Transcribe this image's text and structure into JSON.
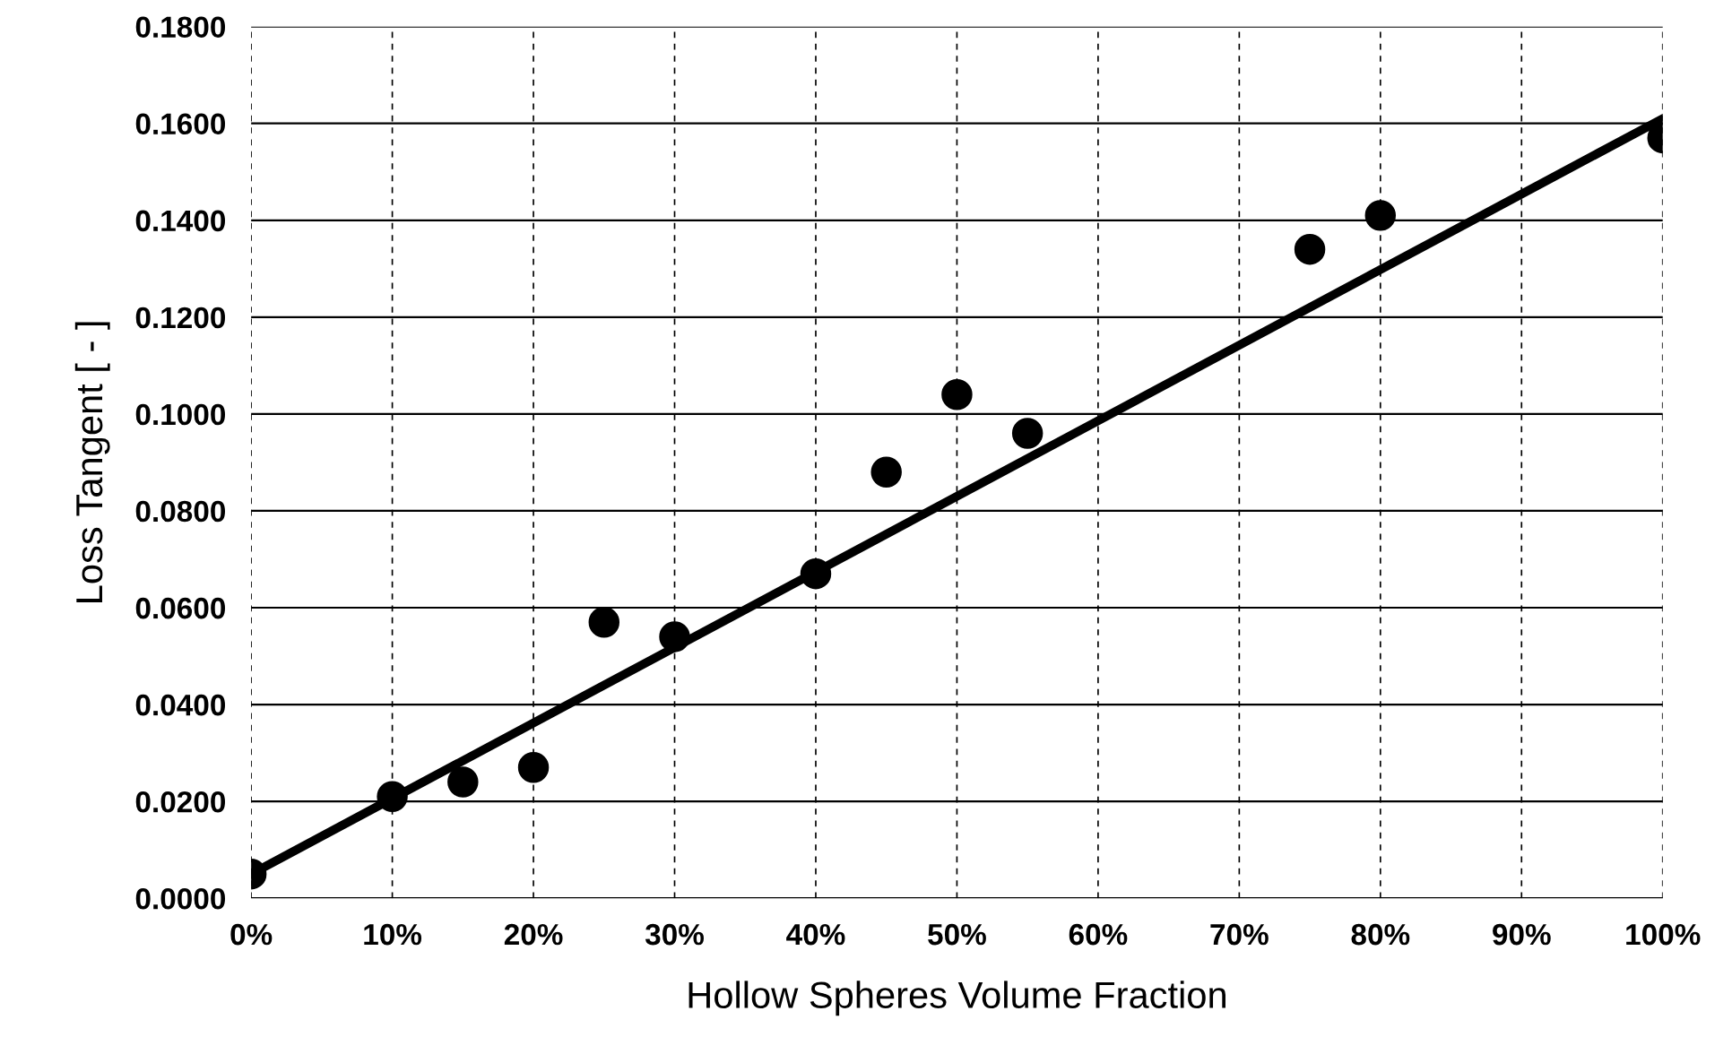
{
  "chart_data": {
    "type": "scatter",
    "xlabel": "Hollow Spheres Volume Fraction",
    "ylabel": "Loss Tangent [ - ]",
    "xlim": [
      0,
      100
    ],
    "ylim": [
      0,
      0.18
    ],
    "xticks": [
      {
        "value": 0,
        "label": "0%"
      },
      {
        "value": 10,
        "label": "10%"
      },
      {
        "value": 20,
        "label": "20%"
      },
      {
        "value": 30,
        "label": "30%"
      },
      {
        "value": 40,
        "label": "40%"
      },
      {
        "value": 50,
        "label": "50%"
      },
      {
        "value": 60,
        "label": "60%"
      },
      {
        "value": 70,
        "label": "70%"
      },
      {
        "value": 80,
        "label": "80%"
      },
      {
        "value": 90,
        "label": "90%"
      },
      {
        "value": 100,
        "label": "100%"
      }
    ],
    "yticks": [
      {
        "value": 0,
        "label": "0.0000"
      },
      {
        "value": 0.02,
        "label": "0.0200"
      },
      {
        "value": 0.04,
        "label": "0.0400"
      },
      {
        "value": 0.06,
        "label": "0.0600"
      },
      {
        "value": 0.08,
        "label": "0.0800"
      },
      {
        "value": 0.1,
        "label": "0.1000"
      },
      {
        "value": 0.12,
        "label": "0.1200"
      },
      {
        "value": 0.14,
        "label": "0.1400"
      },
      {
        "value": 0.16,
        "label": "0.1600"
      },
      {
        "value": 0.18,
        "label": "0.1800"
      }
    ],
    "grid": true,
    "series": [
      {
        "color": "#000000",
        "marker": "circle",
        "x": [
          0,
          10,
          15,
          20,
          25,
          30,
          40,
          45,
          50,
          55,
          75,
          80,
          100
        ],
        "values": [
          0.005,
          0.021,
          0.024,
          0.027,
          0.057,
          0.054,
          0.067,
          0.088,
          0.104,
          0.096,
          0.134,
          0.141,
          0.157
        ]
      },
      {
        "type": "line",
        "color": "#000000",
        "line_style": "solid",
        "marker": "none",
        "x": [
          0,
          100
        ],
        "values": [
          0.005,
          0.161
        ]
      }
    ]
  }
}
